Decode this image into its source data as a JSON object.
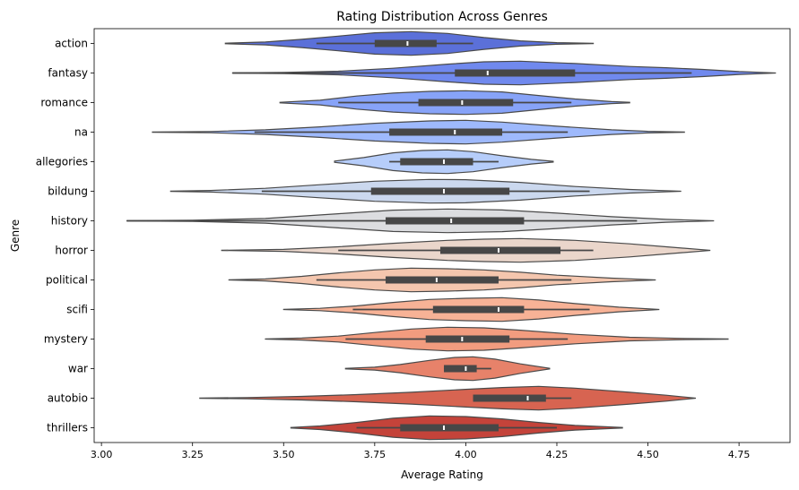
{
  "chart_data": {
    "type": "violin",
    "orientation": "horizontal",
    "title": "Rating Distribution Across Genres",
    "xlabel": "Average Rating",
    "ylabel": "Genre",
    "xlim": [
      2.98,
      4.89
    ],
    "xticks": [
      "3.00",
      "3.25",
      "3.50",
      "3.75",
      "4.00",
      "4.25",
      "4.50",
      "4.75"
    ],
    "grid": false,
    "legend": "none",
    "categories": [
      "action",
      "fantasy",
      "romance",
      "na",
      "allegories",
      "bildung",
      "history",
      "horror",
      "political",
      "scifi",
      "mystery",
      "war",
      "autobio",
      "thrillers"
    ],
    "colors": [
      "#5b70d9",
      "#7089ee",
      "#87a3f8",
      "#9eb9fc",
      "#b6cdfa",
      "#cbd8ee",
      "#dcdde0",
      "#ead6cb",
      "#f4c6ae",
      "#f7b296",
      "#f29c7f",
      "#e7826a",
      "#d76451",
      "#c4433a"
    ],
    "series": [
      {
        "name": "action",
        "range": [
          3.34,
          4.35
        ],
        "whiskers": [
          3.59,
          4.02
        ],
        "q1": 3.75,
        "median": 3.84,
        "q3": 3.92,
        "density": [
          [
            3.34,
            0.02
          ],
          [
            3.45,
            0.12
          ],
          [
            3.55,
            0.35
          ],
          [
            3.65,
            0.62
          ],
          [
            3.75,
            0.9
          ],
          [
            3.85,
            1.0
          ],
          [
            3.95,
            0.85
          ],
          [
            4.05,
            0.5
          ],
          [
            4.15,
            0.22
          ],
          [
            4.25,
            0.07
          ],
          [
            4.35,
            0.01
          ]
        ]
      },
      {
        "name": "fantasy",
        "range": [
          3.36,
          4.85
        ],
        "whiskers": [
          3.36,
          4.62
        ],
        "q1": 3.97,
        "median": 4.06,
        "q3": 4.3,
        "density": [
          [
            3.36,
            0.01
          ],
          [
            3.5,
            0.05
          ],
          [
            3.65,
            0.15
          ],
          [
            3.8,
            0.4
          ],
          [
            3.95,
            0.75
          ],
          [
            4.05,
            0.95
          ],
          [
            4.15,
            1.0
          ],
          [
            4.3,
            0.8
          ],
          [
            4.45,
            0.55
          ],
          [
            4.55,
            0.45
          ],
          [
            4.65,
            0.3
          ],
          [
            4.75,
            0.12
          ],
          [
            4.85,
            0.01
          ]
        ]
      },
      {
        "name": "romance",
        "range": [
          3.49,
          4.45
        ],
        "whiskers": [
          3.65,
          4.29
        ],
        "q1": 3.87,
        "median": 3.99,
        "q3": 4.13,
        "density": [
          [
            3.49,
            0.02
          ],
          [
            3.6,
            0.2
          ],
          [
            3.7,
            0.55
          ],
          [
            3.8,
            0.8
          ],
          [
            3.9,
            0.95
          ],
          [
            4.0,
            1.0
          ],
          [
            4.1,
            0.9
          ],
          [
            4.2,
            0.6
          ],
          [
            4.3,
            0.3
          ],
          [
            4.4,
            0.08
          ],
          [
            4.45,
            0.02
          ]
        ]
      },
      {
        "name": "na",
        "range": [
          3.14,
          4.6
        ],
        "whiskers": [
          3.42,
          4.28
        ],
        "q1": 3.79,
        "median": 3.97,
        "q3": 4.1,
        "density": [
          [
            3.14,
            0.01
          ],
          [
            3.3,
            0.05
          ],
          [
            3.45,
            0.2
          ],
          [
            3.6,
            0.45
          ],
          [
            3.75,
            0.75
          ],
          [
            3.9,
            0.95
          ],
          [
            4.0,
            1.0
          ],
          [
            4.1,
            0.85
          ],
          [
            4.25,
            0.5
          ],
          [
            4.4,
            0.2
          ],
          [
            4.5,
            0.07
          ],
          [
            4.6,
            0.01
          ]
        ]
      },
      {
        "name": "allegories",
        "range": [
          3.64,
          4.24
        ],
        "whiskers": [
          3.79,
          4.09
        ],
        "q1": 3.82,
        "median": 3.94,
        "q3": 4.02,
        "density": [
          [
            3.64,
            0.05
          ],
          [
            3.72,
            0.35
          ],
          [
            3.8,
            0.75
          ],
          [
            3.88,
            0.95
          ],
          [
            3.95,
            1.0
          ],
          [
            4.02,
            0.85
          ],
          [
            4.1,
            0.5
          ],
          [
            4.18,
            0.2
          ],
          [
            4.24,
            0.03
          ]
        ]
      },
      {
        "name": "bildung",
        "range": [
          3.19,
          4.59
        ],
        "whiskers": [
          3.44,
          4.34
        ],
        "q1": 3.74,
        "median": 3.94,
        "q3": 4.12,
        "density": [
          [
            3.19,
            0.01
          ],
          [
            3.3,
            0.07
          ],
          [
            3.45,
            0.25
          ],
          [
            3.6,
            0.55
          ],
          [
            3.75,
            0.85
          ],
          [
            3.9,
            1.0
          ],
          [
            4.0,
            0.98
          ],
          [
            4.15,
            0.75
          ],
          [
            4.3,
            0.4
          ],
          [
            4.45,
            0.15
          ],
          [
            4.59,
            0.01
          ]
        ]
      },
      {
        "name": "history",
        "range": [
          3.07,
          4.68
        ],
        "whiskers": [
          3.07,
          4.47
        ],
        "q1": 3.78,
        "median": 3.96,
        "q3": 4.16,
        "density": [
          [
            3.07,
            0.01
          ],
          [
            3.25,
            0.05
          ],
          [
            3.45,
            0.2
          ],
          [
            3.65,
            0.6
          ],
          [
            3.8,
            0.9
          ],
          [
            3.95,
            1.0
          ],
          [
            4.1,
            0.92
          ],
          [
            4.25,
            0.65
          ],
          [
            4.4,
            0.35
          ],
          [
            4.55,
            0.12
          ],
          [
            4.68,
            0.01
          ]
        ]
      },
      {
        "name": "horror",
        "range": [
          3.33,
          4.67
        ],
        "whiskers": [
          3.65,
          4.35
        ],
        "q1": 3.93,
        "median": 4.09,
        "q3": 4.26,
        "density": [
          [
            3.33,
            0.01
          ],
          [
            3.5,
            0.08
          ],
          [
            3.65,
            0.3
          ],
          [
            3.8,
            0.6
          ],
          [
            3.95,
            0.85
          ],
          [
            4.05,
            0.95
          ],
          [
            4.15,
            1.0
          ],
          [
            4.3,
            0.85
          ],
          [
            4.45,
            0.55
          ],
          [
            4.55,
            0.3
          ],
          [
            4.67,
            0.01
          ]
        ]
      },
      {
        "name": "political",
        "range": [
          3.35,
          4.52
        ],
        "whiskers": [
          3.59,
          4.29
        ],
        "q1": 3.78,
        "median": 3.92,
        "q3": 4.09,
        "density": [
          [
            3.35,
            0.01
          ],
          [
            3.45,
            0.08
          ],
          [
            3.55,
            0.3
          ],
          [
            3.65,
            0.6
          ],
          [
            3.75,
            0.85
          ],
          [
            3.85,
            1.0
          ],
          [
            3.95,
            0.95
          ],
          [
            4.05,
            0.85
          ],
          [
            4.15,
            0.65
          ],
          [
            4.25,
            0.4
          ],
          [
            4.4,
            0.15
          ],
          [
            4.52,
            0.01
          ]
        ]
      },
      {
        "name": "scifi",
        "range": [
          3.5,
          4.53
        ],
        "whiskers": [
          3.69,
          4.34
        ],
        "q1": 3.91,
        "median": 4.09,
        "q3": 4.16,
        "density": [
          [
            3.5,
            0.01
          ],
          [
            3.6,
            0.1
          ],
          [
            3.7,
            0.3
          ],
          [
            3.8,
            0.6
          ],
          [
            3.9,
            0.85
          ],
          [
            4.0,
            0.95
          ],
          [
            4.1,
            1.0
          ],
          [
            4.2,
            0.8
          ],
          [
            4.3,
            0.5
          ],
          [
            4.42,
            0.2
          ],
          [
            4.53,
            0.01
          ]
        ]
      },
      {
        "name": "mystery",
        "range": [
          3.45,
          4.72
        ],
        "whiskers": [
          3.67,
          4.28
        ],
        "q1": 3.89,
        "median": 3.99,
        "q3": 4.12,
        "density": [
          [
            3.45,
            0.01
          ],
          [
            3.55,
            0.08
          ],
          [
            3.65,
            0.25
          ],
          [
            3.75,
            0.55
          ],
          [
            3.85,
            0.85
          ],
          [
            3.95,
            1.0
          ],
          [
            4.05,
            0.95
          ],
          [
            4.15,
            0.75
          ],
          [
            4.3,
            0.4
          ],
          [
            4.45,
            0.15
          ],
          [
            4.6,
            0.05
          ],
          [
            4.72,
            0.01
          ]
        ]
      },
      {
        "name": "war",
        "range": [
          3.67,
          4.23
        ],
        "whiskers": [
          3.94,
          4.07
        ],
        "q1": 3.94,
        "median": 4.0,
        "q3": 4.03,
        "density": [
          [
            3.67,
            0.02
          ],
          [
            3.75,
            0.12
          ],
          [
            3.82,
            0.35
          ],
          [
            3.9,
            0.7
          ],
          [
            3.97,
            0.95
          ],
          [
            4.02,
            1.0
          ],
          [
            4.08,
            0.8
          ],
          [
            4.15,
            0.4
          ],
          [
            4.23,
            0.03
          ]
        ]
      },
      {
        "name": "autobio",
        "range": [
          3.27,
          4.63
        ],
        "whiskers": [
          4.02,
          4.29
        ],
        "q1": 4.02,
        "median": 4.17,
        "q3": 4.22,
        "density": [
          [
            3.27,
            0.01
          ],
          [
            3.4,
            0.05
          ],
          [
            3.55,
            0.15
          ],
          [
            3.7,
            0.3
          ],
          [
            3.85,
            0.5
          ],
          [
            4.0,
            0.75
          ],
          [
            4.1,
            0.9
          ],
          [
            4.2,
            1.0
          ],
          [
            4.3,
            0.85
          ],
          [
            4.45,
            0.5
          ],
          [
            4.55,
            0.25
          ],
          [
            4.63,
            0.01
          ]
        ]
      },
      {
        "name": "thrillers",
        "range": [
          3.52,
          4.43
        ],
        "whiskers": [
          3.7,
          4.25
        ],
        "q1": 3.82,
        "median": 3.94,
        "q3": 4.09,
        "density": [
          [
            3.52,
            0.02
          ],
          [
            3.6,
            0.15
          ],
          [
            3.7,
            0.45
          ],
          [
            3.8,
            0.8
          ],
          [
            3.9,
            1.0
          ],
          [
            4.0,
            0.95
          ],
          [
            4.1,
            0.75
          ],
          [
            4.2,
            0.45
          ],
          [
            4.3,
            0.2
          ],
          [
            4.43,
            0.02
          ]
        ]
      }
    ]
  }
}
